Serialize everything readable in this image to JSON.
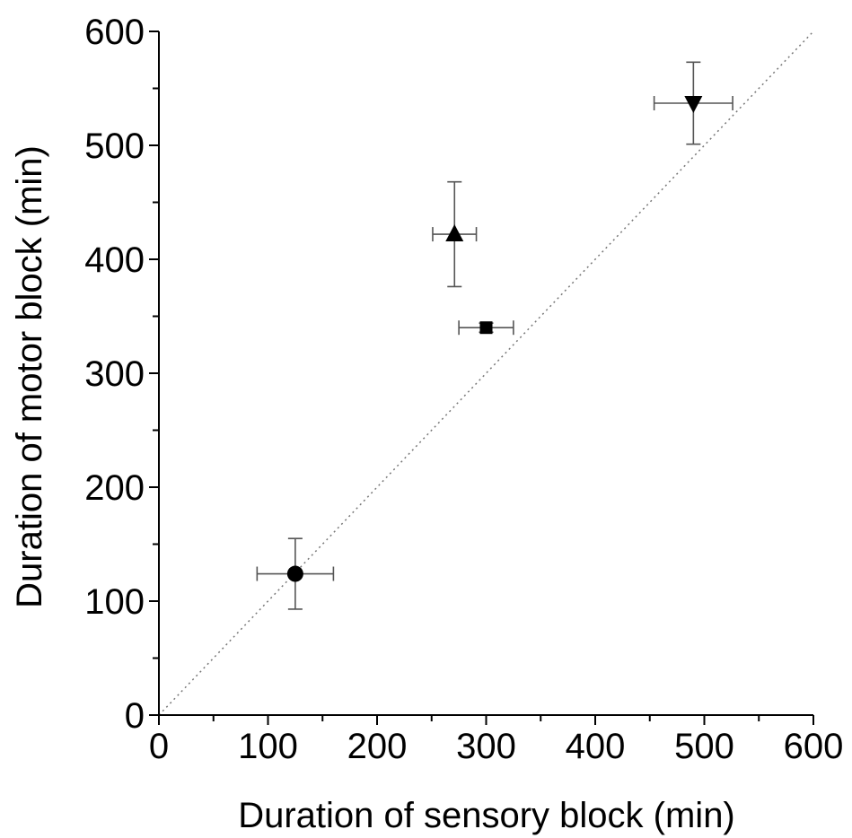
{
  "chart_data": {
    "type": "scatter",
    "title": "",
    "xlabel": "Duration of sensory block (min)",
    "ylabel": "Duration of motor block (min)",
    "xlim": [
      0,
      600
    ],
    "ylim": [
      0,
      600
    ],
    "xticks": [
      0,
      100,
      200,
      300,
      400,
      500,
      600
    ],
    "yticks": [
      0,
      100,
      200,
      300,
      400,
      500,
      600
    ],
    "grid": false,
    "legend": "none",
    "reference_line": {
      "from": [
        0,
        0
      ],
      "to": [
        600,
        600
      ],
      "style": "dotted"
    },
    "points": [
      {
        "marker": "circle",
        "x": 125,
        "y": 124,
        "x_err": 35,
        "y_err": 31
      },
      {
        "marker": "square",
        "x": 300,
        "y": 340,
        "x_err": 25,
        "y_err": 4
      },
      {
        "marker": "triangle-up",
        "x": 271,
        "y": 422,
        "x_err": 20,
        "y_err": 46
      },
      {
        "marker": "triangle-down",
        "x": 490,
        "y": 537,
        "x_err": 36,
        "y_err": 36
      }
    ]
  }
}
